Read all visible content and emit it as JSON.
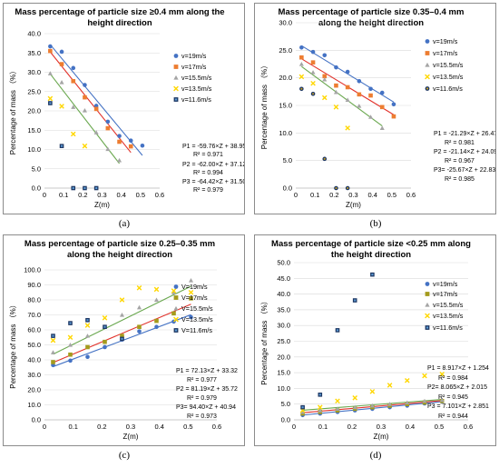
{
  "colors": {
    "v19": "#4472c4",
    "v17": "#ed7d31",
    "v17_olive": "#a49b1c",
    "v15_5": "#a5a5a5",
    "v13_5": "#ffd700",
    "v11_6": "#1f3864",
    "line_blue": "#4472c4",
    "line_red": "#e2322b",
    "line_green": "#6aa84f",
    "grid": "#d9d9d9"
  },
  "panel_labels": [
    "(a)",
    "(b)",
    "(c)",
    "(d)"
  ],
  "chart_data": [
    {
      "type": "scatter",
      "title": [
        "Mass percentage of particle size ≥0.4 mm along the",
        "height direction"
      ],
      "xlabel": "Z(m)",
      "ylabel": "Percentage of mass （%）",
      "xlim": [
        0,
        0.6
      ],
      "ylim": [
        0,
        40
      ],
      "xticks": [
        "0",
        "0.1",
        "0.2",
        "0.3",
        "0.4",
        "0.5",
        "0.6"
      ],
      "yticks": [
        "0.0",
        "5.0",
        "10.0",
        "15.0",
        "20.0",
        "25.0",
        "30.0",
        "35.0",
        "40.0"
      ],
      "grid": true,
      "legend_position": "right",
      "series": [
        {
          "name": "v=19m/s",
          "marker": "circle",
          "color_key": "v19",
          "x": [
            0.03,
            0.09,
            0.15,
            0.21,
            0.27,
            0.33,
            0.39,
            0.45,
            0.51
          ],
          "y": [
            36.7,
            35.3,
            31.1,
            26.7,
            21.3,
            17.2,
            13.5,
            12.3,
            11.0
          ]
        },
        {
          "name": "v=17m/s",
          "marker": "square",
          "color_key": "v17",
          "x": [
            0.03,
            0.09,
            0.15,
            0.21,
            0.27,
            0.33,
            0.39,
            0.45
          ],
          "y": [
            35.5,
            32.1,
            27.7,
            23.5,
            20.5,
            15.5,
            12.0,
            10.8
          ]
        },
        {
          "name": "v=15.5m/s",
          "marker": "triangle",
          "color_key": "v15_5",
          "x": [
            0.03,
            0.09,
            0.15,
            0.21,
            0.27,
            0.33,
            0.39
          ],
          "y": [
            29.7,
            27.4,
            21.0,
            20.1,
            14.4,
            10.1,
            7.2
          ]
        },
        {
          "name": "v=13.5m/s",
          "marker": "x",
          "color_key": "v13_5",
          "x": [
            0.03,
            0.09,
            0.15,
            0.21
          ],
          "y": [
            23.2,
            21.2,
            14.0,
            10.9
          ]
        },
        {
          "name": "v=11.6m/s",
          "marker": "square-dark",
          "color_key": "v11_6",
          "x": [
            0.03,
            0.09,
            0.15,
            0.21,
            0.27
          ],
          "y": [
            22.0,
            10.9,
            0.0,
            0.0,
            0.0
          ]
        }
      ],
      "fits": [
        {
          "slope": -59.76,
          "intercept": 38.95,
          "x_range": [
            0.03,
            0.51
          ],
          "color_key": "line_blue"
        },
        {
          "slope": -62.0,
          "intercept": 37.12,
          "x_range": [
            0.03,
            0.45
          ],
          "color_key": "line_red"
        },
        {
          "slope": -64.42,
          "intercept": 31.5,
          "x_range": [
            0.03,
            0.39
          ],
          "color_key": "line_green"
        }
      ],
      "annotations": [
        "P1 = -59.76×Z + 38.95",
        "R² = 0.971",
        "P2 = -62.00×Z + 37.12",
        "R² = 0.994",
        "P3 = -64.42×Z + 31.50",
        "R² = 0.979"
      ]
    },
    {
      "type": "scatter",
      "title": [
        "Mass percentage of particle size 0.35–0.4 mm",
        "along the height direction"
      ],
      "xlabel": "Z(m)",
      "ylabel": "Percentage of mass （%）",
      "xlim": [
        0,
        0.6
      ],
      "ylim": [
        0,
        30
      ],
      "xticks": [
        "0",
        "0.1",
        "0.2",
        "0.3",
        "0.4",
        "0.5",
        "0.6"
      ],
      "yticks": [
        "0.0",
        "5.0",
        "10.0",
        "15.0",
        "20.0",
        "25.0",
        "30.0"
      ],
      "grid": true,
      "legend_position": "right",
      "series": [
        {
          "name": "v=19m/s",
          "marker": "circle",
          "color_key": "v19",
          "x": [
            0.03,
            0.09,
            0.15,
            0.21,
            0.27,
            0.33,
            0.39,
            0.45,
            0.51
          ],
          "y": [
            25.5,
            24.7,
            24.1,
            21.9,
            21.1,
            19.4,
            18.0,
            17.3,
            15.2
          ]
        },
        {
          "name": "v=17m/s",
          "marker": "square",
          "color_key": "v17",
          "x": [
            0.03,
            0.09,
            0.15,
            0.21,
            0.27,
            0.33,
            0.39,
            0.45,
            0.51
          ],
          "y": [
            23.7,
            22.8,
            20.3,
            18.6,
            18.3,
            17.0,
            16.8,
            14.7,
            13.0
          ]
        },
        {
          "name": "v=15.5m/s",
          "marker": "triangle",
          "color_key": "v15_5",
          "x": [
            0.03,
            0.09,
            0.15,
            0.21,
            0.27,
            0.33,
            0.39,
            0.45
          ],
          "y": [
            22.5,
            21.0,
            19.7,
            17.4,
            16.0,
            14.9,
            12.9,
            10.9
          ]
        },
        {
          "name": "v=13.5m/s",
          "marker": "x",
          "color_key": "v13_5",
          "x": [
            0.03,
            0.09,
            0.15,
            0.21,
            0.27
          ],
          "y": [
            20.2,
            19.0,
            16.4,
            14.7,
            10.9
          ]
        },
        {
          "name": "v=11.6m/s",
          "marker": "circle-dark",
          "color_key": "v11_6",
          "x": [
            0.03,
            0.09,
            0.15,
            0.21,
            0.27
          ],
          "y": [
            18.0,
            17.1,
            5.3,
            0.0,
            0.0
          ]
        }
      ],
      "fits": [
        {
          "slope": -21.29,
          "intercept": 26.47,
          "x_range": [
            0.03,
            0.51
          ],
          "color_key": "line_blue"
        },
        {
          "slope": -21.14,
          "intercept": 24.09,
          "x_range": [
            0.03,
            0.51
          ],
          "color_key": "line_red"
        },
        {
          "slope": -25.67,
          "intercept": 22.83,
          "x_range": [
            0.03,
            0.45
          ],
          "color_key": "line_green"
        }
      ],
      "annotations": [
        "P1 = -21.29×Z + 26.47",
        "R² = 0.981",
        "P2 = -21.14×Z + 24.09",
        "R² = 0.967",
        "P3= -25.67×Z + 22.83",
        "R² = 0.985"
      ]
    },
    {
      "type": "scatter",
      "title": [
        "Mass percentage of particle size 0.25–0.35 mm",
        "along the height direction"
      ],
      "xlabel": "Z(m)",
      "ylabel": "Percentage of mass （%）",
      "xlim": [
        0,
        0.6
      ],
      "ylim": [
        0,
        100
      ],
      "xticks": [
        "0",
        "0.1",
        "0.2",
        "0.3",
        "0.4",
        "0.5",
        "0.6"
      ],
      "yticks": [
        "0.0",
        "10.0",
        "20.0",
        "30.0",
        "40.0",
        "50.0",
        "60.0",
        "70.0",
        "80.0",
        "90.0",
        "100.0"
      ],
      "grid": true,
      "legend_position": "right",
      "series": [
        {
          "name": "V=19m/s",
          "marker": "circle",
          "color_key": "v19",
          "x": [
            0.03,
            0.09,
            0.15,
            0.21,
            0.27,
            0.33,
            0.39,
            0.45,
            0.51
          ],
          "y": [
            36.5,
            39.5,
            42.0,
            48.5,
            53.5,
            59.0,
            62.0,
            65.5,
            68.5
          ]
        },
        {
          "name": "V=17m/s",
          "marker": "square",
          "color_key": "v17_olive",
          "x": [
            0.03,
            0.09,
            0.15,
            0.21,
            0.27,
            0.33,
            0.39,
            0.45,
            0.51
          ],
          "y": [
            38.5,
            43.5,
            48.5,
            52.0,
            56.0,
            62.0,
            66.0,
            71.0,
            81.0
          ]
        },
        {
          "name": "V=15.5m/s",
          "marker": "triangle",
          "color_key": "v15_5",
          "x": [
            0.03,
            0.09,
            0.15,
            0.21,
            0.27,
            0.33,
            0.39,
            0.45,
            0.51
          ],
          "y": [
            45.0,
            50.0,
            56.0,
            62.0,
            70.0,
            75.0,
            80.0,
            85.0,
            93.0
          ]
        },
        {
          "name": "V=13.5m/s",
          "marker": "x",
          "color_key": "v13_5",
          "x": [
            0.03,
            0.09,
            0.15,
            0.21,
            0.27,
            0.33,
            0.39,
            0.45,
            0.51
          ],
          "y": [
            53.0,
            55.0,
            63.0,
            68.0,
            80.0,
            88.0,
            87.0,
            86.0,
            85.0
          ]
        },
        {
          "name": "V=11.6m/s",
          "marker": "square-dark",
          "color_key": "v11_6",
          "x": [
            0.03,
            0.09,
            0.15,
            0.21,
            0.27
          ],
          "y": [
            56.0,
            64.5,
            66.5,
            62.0,
            54.0
          ]
        }
      ],
      "fits": [
        {
          "slope": 72.13,
          "intercept": 33.32,
          "x_range": [
            0.03,
            0.51
          ],
          "color_key": "line_blue"
        },
        {
          "slope": 81.19,
          "intercept": 35.72,
          "x_range": [
            0.03,
            0.51
          ],
          "color_key": "line_red"
        },
        {
          "slope": 94.4,
          "intercept": 40.94,
          "x_range": [
            0.03,
            0.51
          ],
          "color_key": "line_green"
        }
      ],
      "annotations": [
        "P1 = 72.13×Z + 33.32",
        "R² = 0.977",
        "P2 = 81.19×Z + 35.72",
        "R² = 0.979",
        "P3= 94.40×Z + 40.94",
        "R² = 0.973"
      ]
    },
    {
      "type": "scatter",
      "title": [
        "Mass percentage of particle size <0.25 mm along",
        "the height direction"
      ],
      "xlabel": "Z(m)",
      "ylabel": "Percentage of mass （%）",
      "xlim": [
        0,
        0.6
      ],
      "ylim": [
        0,
        50
      ],
      "xticks": [
        "0",
        "0.1",
        "0.2",
        "0.3",
        "0.4",
        "0.5",
        "0.6"
      ],
      "yticks": [
        "0.0",
        "5.0",
        "10.0",
        "15.0",
        "20.0",
        "25.0",
        "30.0",
        "35.0",
        "40.0",
        "45.0",
        "50.0"
      ],
      "grid": true,
      "legend_position": "right",
      "series": [
        {
          "name": "v=19m/s",
          "marker": "circle",
          "color_key": "v19",
          "x": [
            0.03,
            0.09,
            0.15,
            0.21,
            0.27,
            0.33,
            0.39,
            0.45,
            0.51
          ],
          "y": [
            1.5,
            2.0,
            2.5,
            3.0,
            3.5,
            4.0,
            4.5,
            5.2,
            5.8
          ]
        },
        {
          "name": "v=17m/s",
          "marker": "square",
          "color_key": "v17_olive",
          "x": [
            0.03,
            0.09,
            0.15,
            0.21,
            0.27,
            0.33,
            0.39,
            0.45,
            0.51
          ],
          "y": [
            2.0,
            2.5,
            3.0,
            3.5,
            4.0,
            4.5,
            5.0,
            5.5,
            6.0
          ]
        },
        {
          "name": "v=15.5m/s",
          "marker": "triangle",
          "color_key": "v15_5",
          "x": [
            0.03,
            0.09,
            0.15,
            0.21,
            0.27,
            0.33,
            0.39,
            0.45,
            0.51
          ],
          "y": [
            2.5,
            3.0,
            3.5,
            4.0,
            4.5,
            5.0,
            5.5,
            6.0,
            6.3
          ]
        },
        {
          "name": "v=13.5m/s",
          "marker": "x",
          "color_key": "v13_5",
          "x": [
            0.03,
            0.09,
            0.15,
            0.21,
            0.27,
            0.33,
            0.39,
            0.45,
            0.51
          ],
          "y": [
            3.0,
            4.0,
            6.0,
            7.0,
            9.0,
            11.0,
            12.5,
            14.0,
            14.5
          ]
        },
        {
          "name": "v=11.6m/s",
          "marker": "square-dark",
          "color_key": "v11_6",
          "x": [
            0.03,
            0.09,
            0.15,
            0.21,
            0.27
          ],
          "y": [
            4.0,
            8.0,
            28.5,
            38.0,
            46.2
          ]
        }
      ],
      "fits": [
        {
          "slope": 8.917,
          "intercept": 1.254,
          "x_range": [
            0.03,
            0.51
          ],
          "color_key": "line_blue"
        },
        {
          "slope": 8.065,
          "intercept": 2.015,
          "x_range": [
            0.03,
            0.51
          ],
          "color_key": "line_red"
        },
        {
          "slope": 7.101,
          "intercept": 2.851,
          "x_range": [
            0.03,
            0.51
          ],
          "color_key": "line_green"
        }
      ],
      "annotations": [
        "P1 = 8.917×Z + 1.254",
        "R² = 0.984",
        "P2= 8.065×Z + 2.015",
        "R² = 0.945",
        "P3 = 7.101×Z + 2.851",
        "R² = 0.944"
      ]
    }
  ]
}
